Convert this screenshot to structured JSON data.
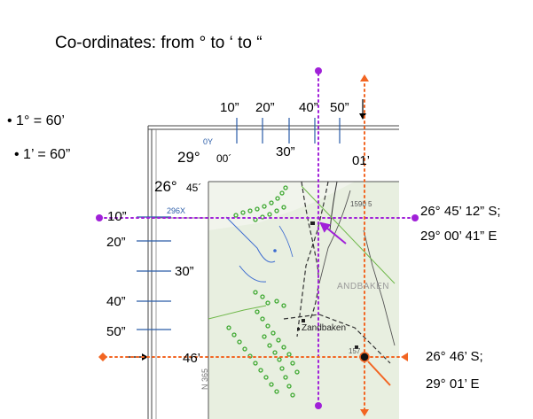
{
  "title": "Co-ordinates: from ° to ‘ to “",
  "bullets": [
    "1° = 60’",
    "1’ = 60”"
  ],
  "top_scale": {
    "labels_upper": [
      "10”",
      "20”",
      "40”",
      "50”"
    ],
    "label_mid": "30”",
    "label_end": "01’"
  },
  "left_scale": {
    "labels": [
      "10”",
      "20”",
      "30”",
      "40”",
      "50”"
    ],
    "label_end": "46’"
  },
  "map_labels": {
    "lon_small": "0Y",
    "lon_main": "29°",
    "lon_min": "00´",
    "lat_main": "26°",
    "lat_min": "45´",
    "grid_ref": "296X",
    "place": "Zandbaken",
    "place_faded": "ANDBAKEN",
    "side_text": "N 365",
    "spot1": "1590 5",
    "spot2": "157"
  },
  "points": [
    {
      "lat": "26° 45’ 12” S;",
      "lon": "29° 00’ 41” E"
    },
    {
      "lat": "26° 46’ S;",
      "lon": "29° 01’ E"
    }
  ],
  "colors": {
    "purple": "#a020d8",
    "orange": "#f26522",
    "scale": "#2a5ca8"
  }
}
